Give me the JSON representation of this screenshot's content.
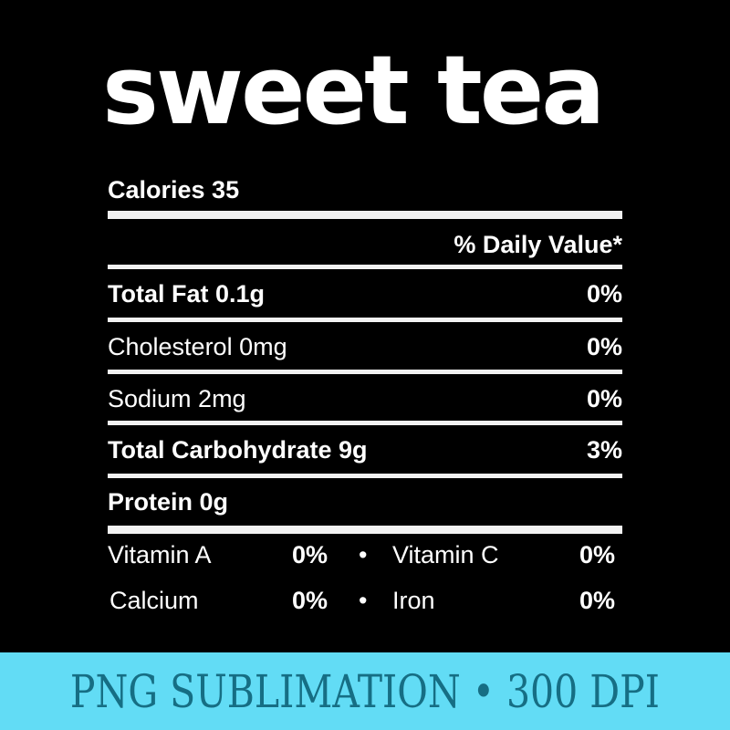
{
  "title": "sweet tea",
  "calories": "Calories 35",
  "daily_value_header": "% Daily Value*",
  "nutrients": [
    {
      "label": "Total Fat 0.1g",
      "dv": "0%",
      "bold": true
    },
    {
      "label": "Cholesterol 0mg",
      "dv": "0%",
      "bold": false
    },
    {
      "label": "Sodium 2mg",
      "dv": "0%",
      "bold": false
    },
    {
      "label": "Total Carbohydrate 9g",
      "dv": "3%",
      "bold": true
    },
    {
      "label": "Protein 0g",
      "dv": "",
      "bold": true
    }
  ],
  "vitamins": [
    {
      "label": "Vitamin A",
      "dv": "0%"
    },
    {
      "label": "Vitamin C",
      "dv": "0%"
    },
    {
      "label": "Calcium",
      "dv": "0%"
    },
    {
      "label": "Iron",
      "dv": "0%"
    }
  ],
  "bullet": "•",
  "banner": {
    "text": "PNG SUBLIMATION • 300 DPI",
    "background": "#62dcf5",
    "color": "#166e84"
  }
}
